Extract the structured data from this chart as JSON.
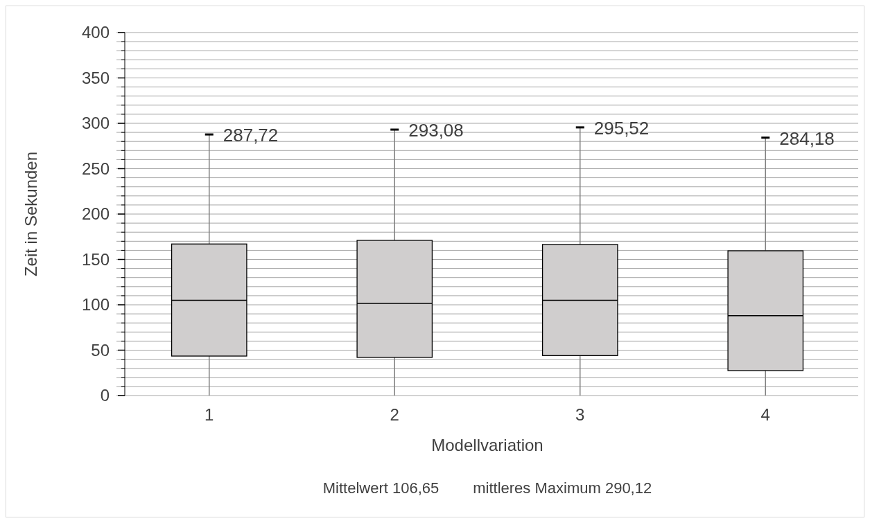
{
  "chart_data": {
    "type": "box",
    "xlabel": "Modellvariation",
    "ylabel": "Zeit in Sekunden",
    "categories": [
      "1",
      "2",
      "3",
      "4"
    ],
    "series": [
      {
        "color": "#d0cece",
        "boxes": [
          {
            "low": 0,
            "q1": 43.5,
            "median": 105,
            "q3": 167,
            "high": 287.72
          },
          {
            "low": 0,
            "q1": 42,
            "median": 101.5,
            "q3": 171,
            "high": 293.08
          },
          {
            "low": 0,
            "q1": 44,
            "median": 105,
            "q3": 166.5,
            "high": 295.52
          },
          {
            "low": 0,
            "q1": 27.5,
            "median": 88,
            "q3": 159.5,
            "high": 284.18
          }
        ]
      }
    ],
    "ylim": [
      0,
      400
    ],
    "yticks": [
      0,
      {
        "value": 10,
        "label": null
      },
      {
        "value": 20,
        "label": null
      },
      {
        "value": 30,
        "label": null
      },
      {
        "value": 40,
        "label": null
      },
      50,
      {
        "value": 60,
        "label": null
      },
      {
        "value": 70,
        "label": null
      },
      {
        "value": 80,
        "label": null
      },
      {
        "value": 90,
        "label": null
      },
      100,
      {
        "value": 110,
        "label": null
      },
      {
        "value": 120,
        "label": null
      },
      {
        "value": 130,
        "label": null
      },
      {
        "value": 140,
        "label": null
      },
      150,
      {
        "value": 160,
        "label": null
      },
      {
        "value": 170,
        "label": null
      },
      {
        "value": 180,
        "label": null
      },
      {
        "value": 190,
        "label": null
      },
      200,
      {
        "value": 210,
        "label": null
      },
      {
        "value": 220,
        "label": null
      },
      {
        "value": 230,
        "label": null
      },
      {
        "value": 240,
        "label": null
      },
      250,
      {
        "value": 260,
        "label": null
      },
      {
        "value": 270,
        "label": null
      },
      {
        "value": 280,
        "label": null
      },
      {
        "value": 290,
        "label": null
      },
      300,
      {
        "value": 310,
        "label": null
      },
      {
        "value": 320,
        "label": null
      },
      {
        "value": 330,
        "label": null
      },
      {
        "value": 340,
        "label": null
      },
      350,
      {
        "value": 360,
        "label": null
      },
      {
        "value": 370,
        "label": null
      },
      {
        "value": 380,
        "label": null
      },
      {
        "value": 390,
        "label": null
      },
      400
    ],
    "grid": true,
    "annotations": [
      {
        "text": "287,72",
        "x": "1",
        "y": 287.72
      },
      {
        "text": "293,08",
        "x": "2",
        "y": 293.08
      },
      {
        "text": "295,52",
        "x": "3",
        "y": 295.52
      },
      {
        "text": "284,18",
        "x": "4",
        "y": 284.18
      },
      "Mittelwert 106,65        mittleres Maximum 290,12"
    ]
  }
}
